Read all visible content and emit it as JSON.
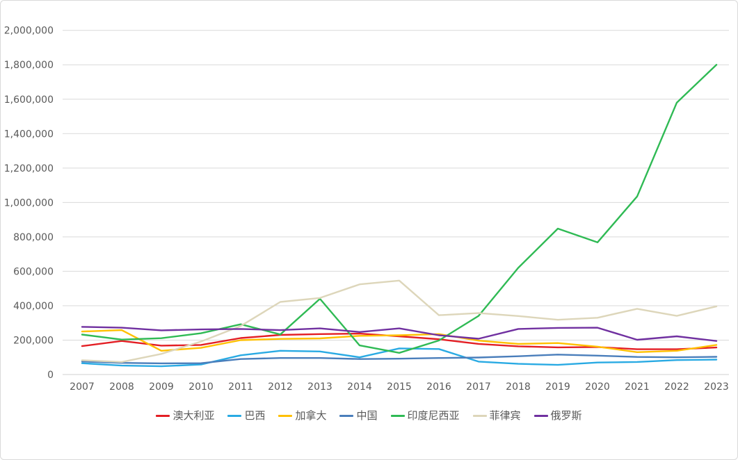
{
  "chart_data": {
    "type": "line",
    "title": "",
    "xlabel": "",
    "ylabel": "",
    "x": [
      2007,
      2008,
      2009,
      2010,
      2011,
      2012,
      2013,
      2014,
      2015,
      2016,
      2017,
      2018,
      2019,
      2020,
      2021,
      2022,
      2023
    ],
    "ylim": [
      0,
      2000000
    ],
    "y_tick_step": 200000,
    "y_ticks": [
      "0",
      "200,000",
      "400,000",
      "600,000",
      "800,000",
      "1,000,000",
      "1,200,000",
      "1,400,000",
      "1,600,000",
      "1,800,000",
      "2,000,000"
    ],
    "grid": true,
    "legend_position": "bottom",
    "series": [
      {
        "name": "澳大利亚",
        "color": "#e31e24",
        "values": [
          165000,
          195000,
          168000,
          172000,
          212000,
          230000,
          235000,
          238000,
          222000,
          205000,
          178000,
          164000,
          158000,
          160000,
          147000,
          147000,
          157000
        ]
      },
      {
        "name": "巴西",
        "color": "#29aae3",
        "values": [
          66000,
          52000,
          48000,
          58000,
          112000,
          138000,
          134000,
          100000,
          152000,
          148000,
          75000,
          62000,
          56000,
          70000,
          73000,
          84000,
          87000
        ]
      },
      {
        "name": "加拿大",
        "color": "#ffc000",
        "values": [
          250000,
          258000,
          138000,
          155000,
          200000,
          207000,
          210000,
          225000,
          228000,
          235000,
          197000,
          178000,
          183000,
          162000,
          130000,
          138000,
          172000
        ]
      },
      {
        "name": "中国",
        "color": "#4a7ebb",
        "values": [
          76000,
          68000,
          65000,
          66000,
          90000,
          96000,
          96000,
          90000,
          92000,
          96000,
          99000,
          106000,
          116000,
          110000,
          102000,
          100000,
          103000
        ]
      },
      {
        "name": "印度尼西亚",
        "color": "#2fba54",
        "values": [
          232000,
          203000,
          211000,
          240000,
          292000,
          233000,
          440000,
          169000,
          126000,
          198000,
          341000,
          620000,
          848000,
          768000,
          1035000,
          1580000,
          1800000
        ]
      },
      {
        "name": "菲律宾",
        "color": "#ddd6ba",
        "values": [
          83000,
          73000,
          120000,
          192000,
          282000,
          422000,
          445000,
          524000,
          546000,
          345000,
          357000,
          340000,
          318000,
          330000,
          382000,
          341000,
          396000
        ]
      },
      {
        "name": "俄罗斯",
        "color": "#7030a0",
        "values": [
          277000,
          272000,
          257000,
          262000,
          265000,
          258000,
          268000,
          247000,
          268000,
          228000,
          208000,
          265000,
          271000,
          272000,
          202000,
          222000,
          195000
        ]
      }
    ]
  },
  "colors": {
    "background": "#ffffff",
    "border": "#d9d9d9",
    "gridline": "#d9d9d9",
    "zero_line": "#cfcfcf",
    "tick_text": "#595959"
  }
}
